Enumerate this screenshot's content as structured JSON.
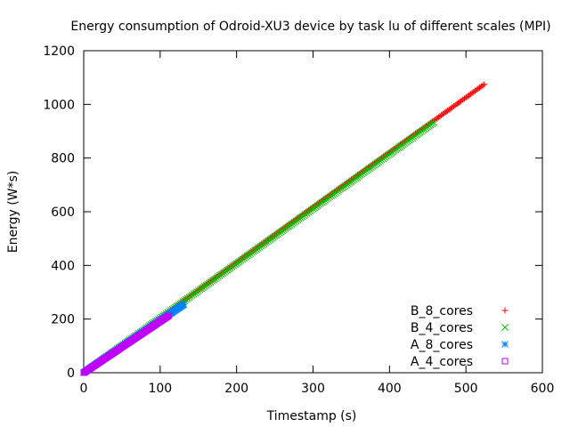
{
  "chart_data": {
    "type": "scatter",
    "title": "Energy consumption of Odroid-XU3 device by task lu of different scales (MPI)",
    "xlabel": "Timestamp (s)",
    "ylabel": "Energy (W*s)",
    "xlim": [
      0,
      600
    ],
    "ylim": [
      0,
      1200
    ],
    "x_ticks": [
      0,
      100,
      200,
      300,
      400,
      500,
      600
    ],
    "y_ticks": [
      0,
      200,
      400,
      600,
      800,
      1000,
      1200
    ],
    "grid": false,
    "legend_position": "bottom-right",
    "series": [
      {
        "name": "B_8_cores",
        "color": "#ff0000",
        "marker": "plus",
        "x_range": [
          0,
          525
        ],
        "y_range": [
          0,
          1077
        ],
        "sample_step": 2
      },
      {
        "name": "B_4_cores",
        "color": "#00c000",
        "marker": "cross",
        "x_range": [
          0,
          458
        ],
        "y_range": [
          0,
          932
        ],
        "sample_step": 2
      },
      {
        "name": "A_8_cores",
        "color": "#0080ff",
        "marker": "star",
        "x_range": [
          0,
          131
        ],
        "y_range": [
          0,
          255
        ],
        "sample_step": 1
      },
      {
        "name": "A_4_cores",
        "color": "#c000ff",
        "marker": "box",
        "x_range": [
          0,
          111
        ],
        "y_range": [
          0,
          212
        ],
        "sample_step": 1
      }
    ]
  }
}
